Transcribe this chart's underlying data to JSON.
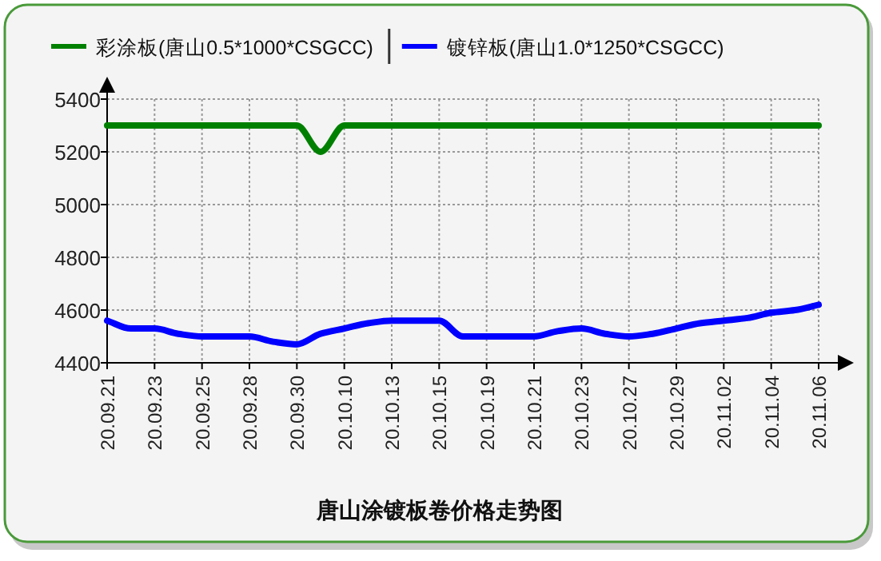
{
  "chart_data": {
    "type": "line",
    "title": "唐山涂镀板卷价格走势图",
    "categories": [
      "20.09.21",
      null,
      "20.09.23",
      null,
      "20.09.25",
      null,
      "20.09.28",
      null,
      "20.09.30",
      null,
      "20.10.10",
      null,
      "20.10.13",
      null,
      "20.10.15",
      null,
      "20.10.19",
      null,
      "20.10.21",
      null,
      "20.10.23",
      null,
      "20.10.27",
      null,
      "20.10.29",
      null,
      "20.11.02",
      null,
      "20.11.04",
      null,
      "20.11.06"
    ],
    "series": [
      {
        "name": "彩涂板(唐山0.5*1000*CSGCC)",
        "color": "#008000",
        "values": [
          5300,
          5300,
          5300,
          5300,
          5300,
          5300,
          5300,
          5300,
          5300,
          5200,
          5300,
          5300,
          5300,
          5300,
          5300,
          5300,
          5300,
          5300,
          5300,
          5300,
          5300,
          5300,
          5300,
          5300,
          5300,
          5300,
          5300,
          5300,
          5300,
          5300,
          5300
        ]
      },
      {
        "name": "镀锌板(唐山1.0*1250*CSGCC)",
        "color": "#0000ff",
        "values": [
          4560,
          4530,
          4530,
          4510,
          4500,
          4500,
          4500,
          4480,
          4470,
          4510,
          4530,
          4550,
          4560,
          4560,
          4560,
          4500,
          4500,
          4500,
          4500,
          4520,
          4530,
          4510,
          4500,
          4510,
          4530,
          4550,
          4560,
          4570,
          4590,
          4600,
          4620
        ]
      }
    ],
    "ylim": [
      4400,
      5400
    ],
    "yticks": [
      4400,
      4600,
      4800,
      5000,
      5200,
      5400
    ],
    "grid": true,
    "legend": "top",
    "marker": "none",
    "line_style": "solid"
  }
}
